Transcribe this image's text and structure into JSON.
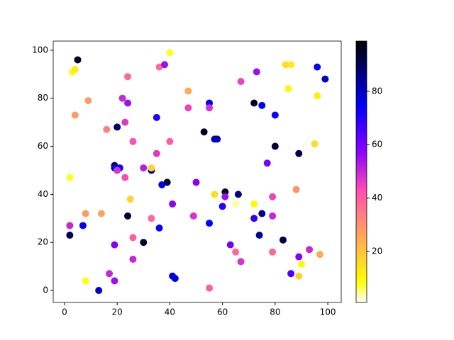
{
  "chart_data": {
    "type": "scatter",
    "colormap": "gnuplot2_r",
    "x": [
      5,
      3,
      4,
      40,
      24,
      36,
      38,
      96,
      84,
      86,
      73,
      99,
      47,
      85,
      4,
      9,
      22,
      24,
      96,
      67,
      72,
      75,
      55,
      55,
      47,
      80,
      35,
      23,
      16,
      20,
      53,
      26,
      40,
      57,
      58,
      80,
      95,
      35,
      89,
      77,
      19,
      19,
      21,
      20,
      30,
      33,
      33,
      39,
      37,
      23,
      2,
      50,
      57,
      61,
      66,
      61,
      25,
      41,
      65,
      72,
      88,
      79,
      60,
      8,
      14,
      24,
      49,
      75,
      79,
      72,
      33,
      2,
      7,
      36,
      55,
      2,
      26,
      74,
      30,
      63,
      83,
      19,
      65,
      79,
      93,
      89,
      67,
      26,
      97,
      90,
      17,
      86,
      8,
      19,
      41,
      42,
      89,
      13,
      55
    ],
    "y": [
      96,
      91,
      92,
      99,
      89,
      93,
      94,
      93,
      94,
      94,
      91,
      88,
      83,
      84,
      73,
      79,
      80,
      78,
      81,
      87,
      78,
      77,
      78,
      76,
      76,
      73,
      72,
      70,
      67,
      68,
      66,
      62,
      62,
      63,
      63,
      60,
      61,
      57,
      57,
      53,
      52,
      51,
      51,
      50,
      51,
      50,
      51,
      45,
      44,
      47,
      47,
      45,
      40,
      41,
      40,
      39,
      38,
      36,
      36,
      36,
      42,
      39,
      35,
      32,
      32,
      31,
      31,
      32,
      31,
      30,
      30,
      27,
      27,
      26,
      28,
      23,
      22,
      23,
      20,
      19,
      21,
      19,
      16,
      16,
      17,
      14,
      12,
      13,
      15,
      11,
      7,
      7,
      4,
      4,
      6,
      5,
      6,
      0,
      1
    ],
    "c": [
      95,
      10,
      12,
      8,
      38,
      37,
      55,
      75,
      15,
      13,
      55,
      80,
      25,
      10,
      28,
      28,
      50,
      55,
      12,
      45,
      95,
      75,
      75,
      48,
      45,
      72,
      70,
      47,
      33,
      88,
      95,
      42,
      40,
      80,
      82,
      94,
      15,
      47,
      92,
      60,
      92,
      76,
      73,
      48,
      52,
      85,
      17,
      95,
      75,
      43,
      8,
      58,
      15,
      96,
      86,
      55,
      17,
      57,
      4,
      10,
      30,
      45,
      70,
      28,
      26,
      94,
      48,
      85,
      50,
      68,
      38,
      50,
      75,
      73,
      74,
      90,
      40,
      84,
      95,
      60,
      92,
      58,
      38,
      38,
      50,
      58,
      48,
      50,
      25,
      10,
      50,
      65,
      8,
      55,
      75,
      77,
      18,
      78,
      40
    ],
    "xlim": [
      -4.3,
      105.1
    ],
    "ylim": [
      -5,
      103.8
    ],
    "xticks": [
      0,
      20,
      40,
      60,
      80,
      100
    ],
    "yticks": [
      0,
      20,
      40,
      60,
      80,
      100
    ],
    "clim": [
      0.9,
      98.8
    ],
    "cticks": [
      20,
      40,
      60,
      80
    ]
  }
}
